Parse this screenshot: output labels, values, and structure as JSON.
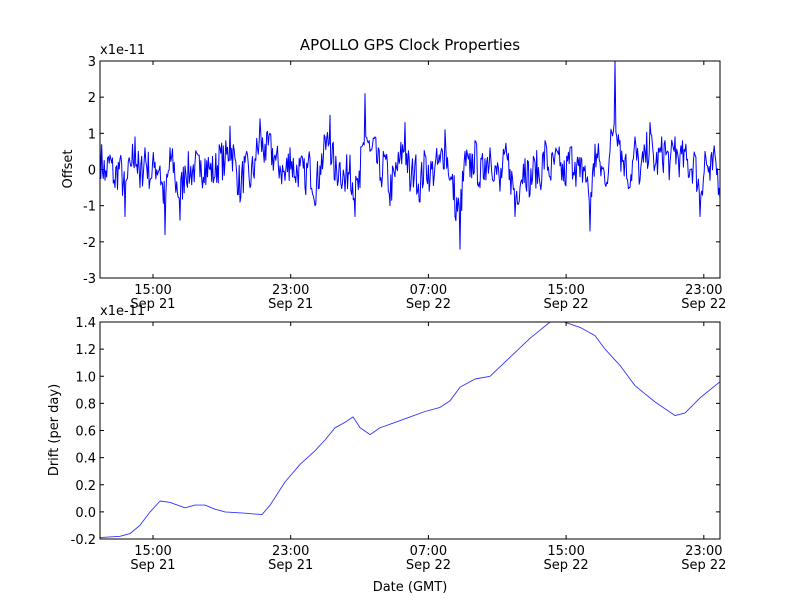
{
  "chart_data": [
    {
      "type": "line",
      "title": "APOLLO GPS Clock Properties",
      "ylabel": "Offset",
      "xlabel": "",
      "offset_text": "x1e-11",
      "x_units": "hours since 15:00 Sep 21 (GMT)",
      "xlim": [
        -3.08,
        32.94
      ],
      "ylim": [
        -3,
        3
      ],
      "yticks": [
        -3,
        -2,
        -1,
        0,
        1,
        2,
        3
      ],
      "ytick_labels": [
        "-3",
        "-2",
        "-1",
        "0",
        "1",
        "2",
        "3"
      ],
      "xticks": [
        0,
        8,
        16,
        24,
        32
      ],
      "xtick_labels": [
        [
          "15:00",
          "Sep 21"
        ],
        [
          "23:00",
          "Sep 21"
        ],
        [
          "07:00",
          "Sep 22"
        ],
        [
          "15:00",
          "Sep 22"
        ],
        [
          "23:00",
          "Sep 22"
        ]
      ],
      "color": "#0000ff",
      "series": [
        {
          "name": "Offset",
          "x_start": -3.08,
          "x_step": 0.2905,
          "values": [
            0.8,
            -0.3,
            0.4,
            -0.5,
            0.3,
            -1.3,
            0.2,
            0.9,
            -0.5,
            0.6,
            -0.3,
            0.2,
            0.1,
            -1.8,
            0.6,
            -0.3,
            -1.4,
            0.1,
            -0.2,
            0.2,
            -0.2,
            0.3,
            0.0,
            -0.2,
            0.6,
            0.2,
            1.2,
            0.3,
            -0.9,
            0.2,
            -0.5,
            0.3,
            1.4,
            0.7,
            1.0,
            0.4,
            0.1,
            -0.3,
            0.6,
            -0.2,
            0.1,
            -0.5,
            0.3,
            -1.0,
            0.1,
            0.9,
            1.5,
            -0.3,
            0.2,
            -0.6,
            0.4,
            -1.3,
            -0.5,
            2.1,
            0.5,
            0.9,
            -0.3,
            0.4,
            -1.0,
            -0.2,
            0.3,
            1.3,
            -0.6,
            0.2,
            -0.9,
            0.4,
            -0.3,
            0.1,
            0.2,
            1.1,
            -0.3,
            -1.3,
            -2.2,
            0.5,
            -0.2,
            0.8,
            -0.5,
            0.3,
            0.6,
            0.1,
            -0.6,
            0.5,
            0.0,
            -1.3,
            -0.5,
            0.3,
            -0.7,
            0.2,
            -0.4,
            0.8,
            -0.2,
            0.4,
            0.1,
            -0.4,
            0.6,
            0.2,
            -0.2,
            0.1,
            -1.7,
            0.7,
            0.2,
            -0.4,
            0.5,
            3.0,
            0.8,
            0.3,
            -0.5,
            0.9,
            -0.3,
            0.5,
            1.3,
            0.1,
            0.6,
            0.8,
            0.2,
            0.9,
            0.4,
            0.5,
            0.0,
            0.4,
            -1.3,
            0.5,
            -0.3,
            0.4,
            -0.8
          ]
        }
      ]
    },
    {
      "type": "line",
      "title": "",
      "ylabel": "Drift (per day)",
      "xlabel": "Date (GMT)",
      "offset_text": "x1e-11",
      "x_units": "hours since 15:00 Sep 21 (GMT)",
      "xlim": [
        -3.08,
        32.94
      ],
      "ylim": [
        -0.2,
        1.4
      ],
      "yticks": [
        -0.2,
        0.0,
        0.2,
        0.4,
        0.6,
        0.8,
        1.0,
        1.2,
        1.4
      ],
      "ytick_labels": [
        "-0.2",
        "0.0",
        "0.2",
        "0.4",
        "0.6",
        "0.8",
        "1.0",
        "1.2",
        "1.4"
      ],
      "xticks": [
        0,
        8,
        16,
        24,
        32
      ],
      "xtick_labels": [
        [
          "15:00",
          "Sep 21"
        ],
        [
          "23:00",
          "Sep 21"
        ],
        [
          "07:00",
          "Sep 22"
        ],
        [
          "15:00",
          "Sep 22"
        ],
        [
          "23:00",
          "Sep 22"
        ]
      ],
      "color": "#3333ff",
      "series": [
        {
          "name": "Drift",
          "x": [
            -3.08,
            -1.92,
            -1.34,
            -0.76,
            -0.17,
            0.41,
            0.99,
            1.86,
            2.44,
            3.02,
            3.6,
            4.18,
            5.35,
            6.33,
            6.8,
            7.67,
            8.54,
            9.41,
            9.99,
            10.57,
            11.15,
            11.62,
            12.03,
            12.61,
            13.19,
            14.06,
            14.93,
            15.8,
            16.67,
            17.26,
            17.84,
            18.71,
            19.58,
            20.74,
            21.9,
            23.07,
            23.65,
            24.81,
            25.68,
            26.26,
            27.13,
            28.0,
            29.17,
            30.33,
            30.91,
            31.78,
            32.94
          ],
          "y": [
            -0.19,
            -0.18,
            -0.16,
            -0.1,
            0.0,
            0.08,
            0.07,
            0.03,
            0.05,
            0.05,
            0.02,
            0.0,
            -0.01,
            -0.02,
            0.05,
            0.22,
            0.35,
            0.45,
            0.53,
            0.62,
            0.66,
            0.7,
            0.62,
            0.57,
            0.62,
            0.66,
            0.7,
            0.74,
            0.77,
            0.82,
            0.92,
            0.98,
            1.0,
            1.14,
            1.28,
            1.4,
            1.41,
            1.36,
            1.3,
            1.2,
            1.08,
            0.93,
            0.81,
            0.71,
            0.73,
            0.84,
            0.96
          ]
        }
      ]
    }
  ]
}
